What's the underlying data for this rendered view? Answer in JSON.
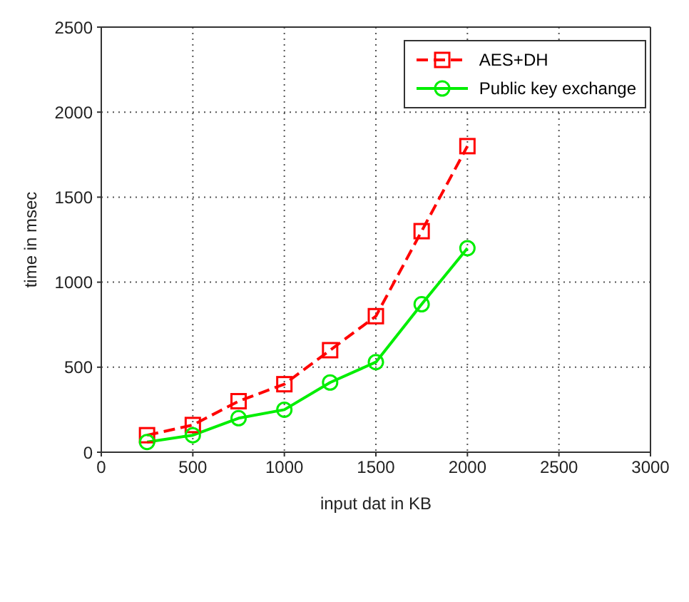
{
  "chart_data": {
    "type": "line",
    "xlabel": "input dat in KB",
    "ylabel": "time in msec",
    "x": [
      250,
      500,
      750,
      1000,
      1250,
      1500,
      1750,
      2000
    ],
    "series": [
      {
        "name": "AES+DH",
        "color": "#ff0000",
        "values": [
          100,
          160,
          300,
          400,
          600,
          800,
          1300,
          1800
        ],
        "marker": "square",
        "line_style": "dashed"
      },
      {
        "name": "Public key exchange",
        "color": "#00ee00",
        "values": [
          60,
          100,
          200,
          250,
          410,
          530,
          870,
          1200
        ],
        "marker": "circle",
        "line_style": "solid"
      }
    ],
    "xlim": [
      0,
      3000
    ],
    "xticks": [
      0,
      500,
      1000,
      1500,
      2000,
      2500,
      3000
    ],
    "ylim": [
      0,
      2500
    ],
    "yticks": [
      0,
      500,
      1000,
      1500,
      2000,
      2500
    ],
    "grid": true,
    "legend": "top right"
  }
}
